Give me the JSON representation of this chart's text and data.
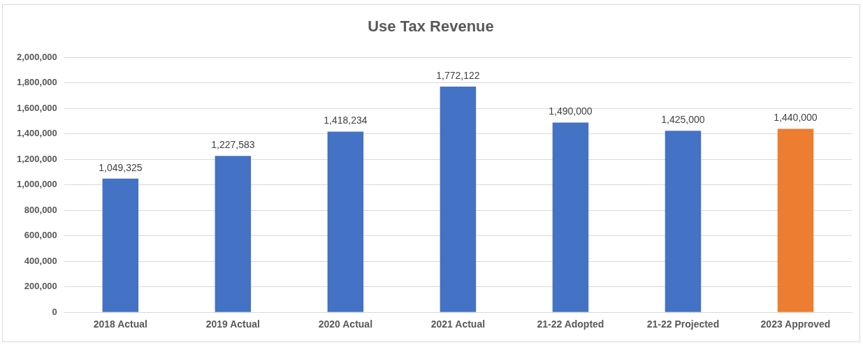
{
  "chart_data": {
    "type": "bar",
    "title": "Use Tax Revenue",
    "categories": [
      "2018 Actual",
      "2019 Actual",
      "2020 Actual",
      "2021 Actual",
      "21-22 Adopted",
      "21-22 Projected",
      "2023 Approved"
    ],
    "values": [
      1049325,
      1227583,
      1418234,
      1772122,
      1490000,
      1425000,
      1440000
    ],
    "value_labels": [
      "1,049,325",
      "1,227,583",
      "1,418,234",
      "1,772,122",
      "1,490,000",
      "1,425,000",
      "1,440,000"
    ],
    "colors": [
      "#4472c4",
      "#4472c4",
      "#4472c4",
      "#4472c4",
      "#4472c4",
      "#4472c4",
      "#ed7d31"
    ],
    "ylim": [
      0,
      2000000
    ],
    "yticks": [
      0,
      {
        "value": 200000,
        "label": "200,000"
      },
      {
        "value": 400000,
        "label": "400,000"
      },
      {
        "value": 600000,
        "label": "600,000"
      },
      {
        "value": 800000,
        "label": "800,000"
      },
      {
        "value": 1000000,
        "label": "1,000,000"
      },
      {
        "value": 1200000,
        "label": "1,200,000"
      },
      {
        "value": 1400000,
        "label": "1,400,000"
      },
      {
        "value": 1600000,
        "label": "1,600,000"
      },
      {
        "value": 1800000,
        "label": "1,800,000"
      },
      {
        "value": 2000000,
        "label": "2,000,000"
      }
    ],
    "grid": "y",
    "legend": false
  }
}
